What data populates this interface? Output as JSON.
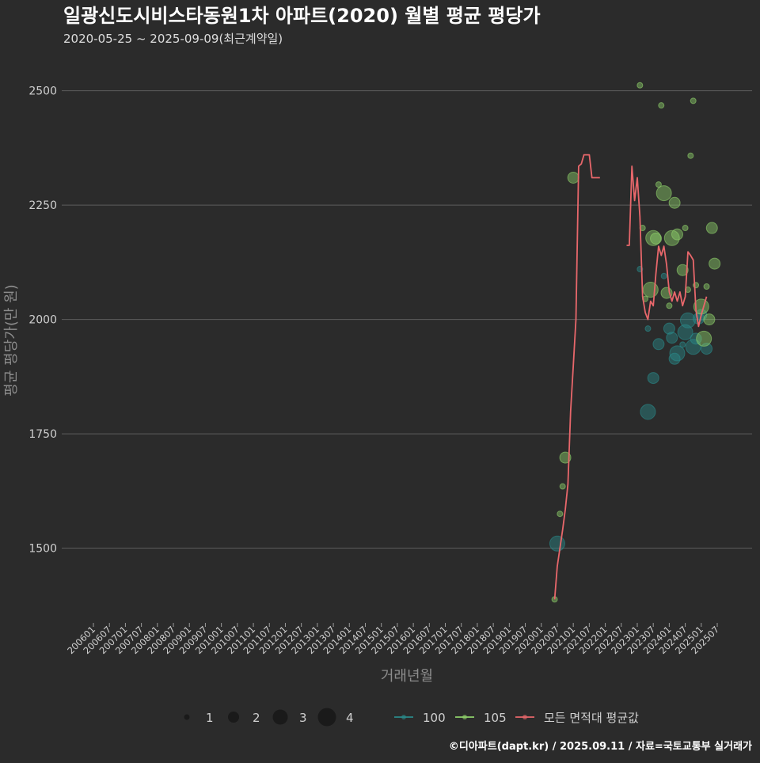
{
  "chart_data": {
    "type": "scatter",
    "title": "일광신도시비스타동원1차 아파트(2020) 월별 평균 평당가",
    "subtitle": "2020-05-25 ~ 2025-09-09(최근계약일)",
    "xlabel": "거래년월",
    "ylabel": "평균 평당가(만 원)",
    "ylim": [
      1340,
      2560
    ],
    "y_ticks": [
      1500,
      1750,
      2000,
      2250,
      2500
    ],
    "x_ticks": [
      "200601",
      "200607",
      "200701",
      "200707",
      "200801",
      "200807",
      "200901",
      "200907",
      "201001",
      "201007",
      "201101",
      "201107",
      "201201",
      "201207",
      "201301",
      "201307",
      "201401",
      "201407",
      "201501",
      "201507",
      "201601",
      "201607",
      "201701",
      "201707",
      "201801",
      "201807",
      "201901",
      "201907",
      "202001",
      "202007",
      "202101",
      "202107",
      "202201",
      "202207",
      "202301",
      "202307",
      "202401",
      "202407",
      "202501",
      "202507"
    ],
    "size_legend": {
      "values": [
        1,
        2,
        3,
        4
      ]
    },
    "series": [
      {
        "name": "100",
        "color": "#2a8a8a",
        "points": [
          {
            "x": "202007",
            "y": 1510,
            "n": 3
          },
          {
            "x": "202305",
            "y": 1798,
            "n": 3
          },
          {
            "x": "202307",
            "y": 1872,
            "n": 2
          },
          {
            "x": "202309",
            "y": 1946,
            "n": 2
          },
          {
            "x": "202311",
            "y": 2095,
            "n": 1
          },
          {
            "x": "202401",
            "y": 1980,
            "n": 2
          },
          {
            "x": "202402",
            "y": 1960,
            "n": 2
          },
          {
            "x": "202403",
            "y": 1914,
            "n": 2
          },
          {
            "x": "202404",
            "y": 1926,
            "n": 3
          },
          {
            "x": "202406",
            "y": 1945,
            "n": 1
          },
          {
            "x": "202407",
            "y": 1972,
            "n": 3
          },
          {
            "x": "202408",
            "y": 1998,
            "n": 3
          },
          {
            "x": "202410",
            "y": 1940,
            "n": 3
          },
          {
            "x": "202411",
            "y": 1958,
            "n": 2
          },
          {
            "x": "202412",
            "y": 2002,
            "n": 2
          },
          {
            "x": "202501",
            "y": 2010,
            "n": 2
          },
          {
            "x": "202503",
            "y": 1936,
            "n": 2
          },
          {
            "x": "202305",
            "y": 1980,
            "n": 1
          },
          {
            "x": "202302",
            "y": 2110,
            "n": 1
          }
        ]
      },
      {
        "name": "105",
        "color": "#8fd16a",
        "points": [
          {
            "x": "202006",
            "y": 1388,
            "n": 1
          },
          {
            "x": "202008",
            "y": 1575,
            "n": 1
          },
          {
            "x": "202009",
            "y": 1635,
            "n": 1
          },
          {
            "x": "202010",
            "y": 1698,
            "n": 2
          },
          {
            "x": "202101",
            "y": 2310,
            "n": 2
          },
          {
            "x": "202303",
            "y": 2200,
            "n": 1
          },
          {
            "x": "202302",
            "y": 2512,
            "n": 1
          },
          {
            "x": "202306",
            "y": 2065,
            "n": 3
          },
          {
            "x": "202307",
            "y": 2178,
            "n": 3
          },
          {
            "x": "202308",
            "y": 2177,
            "n": 2
          },
          {
            "x": "202309",
            "y": 2295,
            "n": 1
          },
          {
            "x": "202310",
            "y": 2468,
            "n": 1
          },
          {
            "x": "202311",
            "y": 2276,
            "n": 3
          },
          {
            "x": "202312",
            "y": 2058,
            "n": 2
          },
          {
            "x": "202401",
            "y": 2030,
            "n": 1
          },
          {
            "x": "202402",
            "y": 2178,
            "n": 3
          },
          {
            "x": "202403",
            "y": 2255,
            "n": 2
          },
          {
            "x": "202404",
            "y": 2186,
            "n": 2
          },
          {
            "x": "202406",
            "y": 2108,
            "n": 2
          },
          {
            "x": "202407",
            "y": 2200,
            "n": 1
          },
          {
            "x": "202408",
            "y": 2065,
            "n": 1
          },
          {
            "x": "202409",
            "y": 2358,
            "n": 1
          },
          {
            "x": "202410",
            "y": 2478,
            "n": 1
          },
          {
            "x": "202411",
            "y": 2075,
            "n": 1
          },
          {
            "x": "202501",
            "y": 2028,
            "n": 3
          },
          {
            "x": "202502",
            "y": 1958,
            "n": 3
          },
          {
            "x": "202503",
            "y": 2072,
            "n": 1
          },
          {
            "x": "202504",
            "y": 2000,
            "n": 2
          },
          {
            "x": "202505",
            "y": 2200,
            "n": 2
          },
          {
            "x": "202506",
            "y": 2122,
            "n": 2
          },
          {
            "x": "202304",
            "y": 2045,
            "n": 1
          }
        ]
      },
      {
        "name": "모든 면적대 평균값",
        "color": "#e8676b",
        "line": [
          [
            "202006",
            1388
          ],
          [
            "202007",
            1460
          ],
          [
            "202008",
            1500
          ],
          [
            "202009",
            1540
          ],
          [
            "202010",
            1585
          ],
          [
            "202011",
            1640
          ],
          [
            "202012",
            1800
          ],
          [
            "202101",
            1900
          ],
          [
            "202102",
            2000
          ],
          [
            "202103",
            2335
          ],
          [
            "202104",
            2340
          ],
          [
            "202105",
            2360
          ],
          [
            "202106",
            2360
          ],
          [
            "202107",
            2360
          ],
          [
            "202108",
            2310
          ],
          [
            "202109",
            2310
          ],
          [
            "202110",
            2310
          ],
          [
            "202111",
            2310
          ],
          [
            "202209",
            2162
          ],
          [
            "202210",
            2162
          ],
          [
            "202211",
            2335
          ],
          [
            "202212",
            2260
          ],
          [
            "202301",
            2310
          ],
          [
            "202302",
            2225
          ],
          [
            "202303",
            2050
          ],
          [
            "202304",
            2015
          ],
          [
            "202305",
            2000
          ],
          [
            "202306",
            2040
          ],
          [
            "202307",
            2030
          ],
          [
            "202308",
            2100
          ],
          [
            "202309",
            2160
          ],
          [
            "202310",
            2140
          ],
          [
            "202311",
            2160
          ],
          [
            "202312",
            2120
          ],
          [
            "202401",
            2060
          ],
          [
            "202402",
            2040
          ],
          [
            "202403",
            2060
          ],
          [
            "202404",
            2040
          ],
          [
            "202405",
            2060
          ],
          [
            "202406",
            2030
          ],
          [
            "202407",
            2050
          ],
          [
            "202408",
            2148
          ],
          [
            "202409",
            2140
          ],
          [
            "202410",
            2130
          ],
          [
            "202411",
            2020
          ],
          [
            "202412",
            1985
          ],
          [
            "202501",
            2010
          ],
          [
            "202502",
            2030
          ],
          [
            "202503",
            2050
          ]
        ]
      }
    ]
  },
  "caption": "©디아파트(dapt.kr) / 2025.09.11 / 자료=국토교통부 실거래가"
}
